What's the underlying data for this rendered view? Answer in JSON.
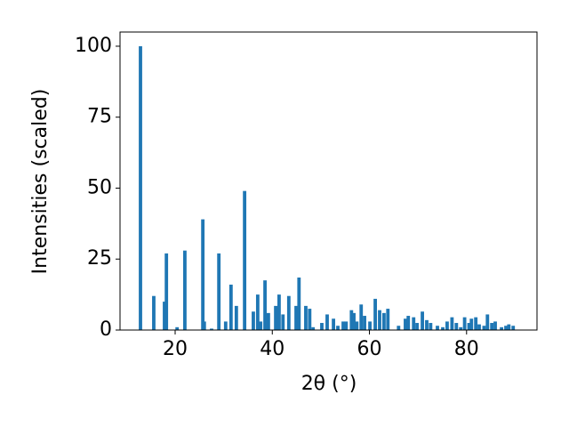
{
  "chart_data": {
    "type": "bar",
    "x_label": "2θ (°)",
    "y_label": "Intensities (scaled)",
    "x": [
      12.86,
      15.6,
      17.8,
      18.2,
      20.4,
      22.0,
      25.7,
      26.0,
      27.5,
      29.0,
      30.4,
      31.5,
      32.6,
      34.3,
      36.1,
      37.0,
      37.6,
      38.5,
      39.2,
      40.7,
      41.4,
      42.2,
      43.4,
      44.9,
      45.5,
      46.9,
      47.7,
      48.4,
      50.2,
      51.3,
      52.6,
      53.5,
      54.6,
      55.2,
      56.3,
      56.8,
      57.4,
      58.3,
      59.0,
      60.1,
      61.2,
      62.1,
      63.0,
      63.8,
      66.0,
      67.4,
      68.0,
      69.1,
      69.8,
      70.9,
      71.8,
      72.6,
      74.0,
      75.1,
      76.0,
      77.0,
      77.9,
      78.8,
      79.6,
      80.5,
      81.0,
      81.9,
      82.6,
      83.6,
      84.3,
      85.2,
      85.9,
      87.2,
      88.1,
      88.7,
      89.6
    ],
    "values": [
      100,
      12,
      10,
      27,
      1,
      28,
      39,
      3,
      0.5,
      27,
      3,
      16,
      8.5,
      49,
      6.5,
      12.5,
      3,
      17.5,
      6,
      8.5,
      12.5,
      5.5,
      12,
      8.5,
      18.5,
      8.5,
      7.5,
      1,
      2.5,
      5.5,
      4,
      1.5,
      3,
      3,
      7,
      6,
      3,
      9,
      5,
      3,
      11,
      7,
      6,
      7.5,
      1.5,
      4,
      5,
      4.5,
      2.5,
      6.5,
      3.5,
      2.5,
      1.5,
      1,
      3,
      4.5,
      2.5,
      1,
      4.5,
      2.5,
      4,
      4.5,
      2,
      1.5,
      5.5,
      2.5,
      3,
      1,
      1.5,
      2,
      1.5
    ],
    "color": "#1f77b4",
    "xlim": [
      8.65,
      94.5
    ],
    "ylim": [
      0,
      105
    ],
    "xticks": [
      20,
      40,
      60,
      80
    ],
    "yticks": [
      0,
      25,
      50,
      75,
      100
    ],
    "grid": false
  }
}
